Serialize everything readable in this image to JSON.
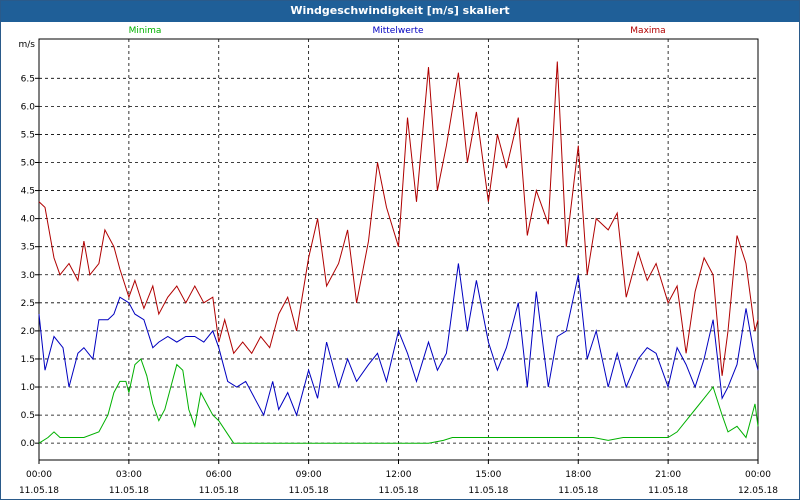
{
  "window": {
    "title": "Windgeschwindigkeit [m/s] skaliert"
  },
  "chart_data": {
    "type": "line",
    "title": "Windgeschwindigkeit [m/s] skaliert",
    "ylabel": "m/s",
    "ylim": [
      -0.3,
      7.2
    ],
    "xlim": [
      0,
      24
    ],
    "grid": true,
    "y_ticks": [
      "0.0",
      "0.5",
      "1.0",
      "1.5",
      "2.0",
      "2.5",
      "3.0",
      "3.5",
      "4.0",
      "4.5",
      "5.0",
      "5.5",
      "6.0",
      "6.5"
    ],
    "x_ticks": [
      {
        "time": "00:00",
        "date": "11.05.18"
      },
      {
        "time": "03:00",
        "date": "11.05.18"
      },
      {
        "time": "06:00",
        "date": "11.05.18"
      },
      {
        "time": "09:00",
        "date": "11.05.18"
      },
      {
        "time": "12:00",
        "date": "11.05.18"
      },
      {
        "time": "15:00",
        "date": "11.05.18"
      },
      {
        "time": "18:00",
        "date": "11.05.18"
      },
      {
        "time": "21:00",
        "date": "11.05.18"
      },
      {
        "time": "00:00",
        "date": "12.05.18"
      }
    ],
    "series": [
      {
        "name": "Minima",
        "color": "#00b000",
        "x": [
          0,
          0.3,
          0.5,
          0.7,
          1,
          1.3,
          1.5,
          2,
          2.3,
          2.5,
          2.7,
          2.9,
          3,
          3.2,
          3.4,
          3.6,
          3.8,
          4,
          4.2,
          4.4,
          4.6,
          4.8,
          5,
          5.2,
          5.4,
          5.6,
          5.8,
          6,
          6.5,
          7,
          8,
          9,
          10,
          11,
          12,
          13,
          13.5,
          13.8,
          14,
          14.2,
          14.5,
          15,
          15.5,
          16,
          16.5,
          17,
          17.5,
          18,
          18.5,
          19,
          19.5,
          20,
          20.5,
          20.8,
          21,
          21.3,
          21.6,
          21.9,
          22.2,
          22.5,
          22.8,
          23,
          23.3,
          23.6,
          23.9,
          24
        ],
        "y": [
          0.0,
          0.1,
          0.2,
          0.1,
          0.1,
          0.1,
          0.1,
          0.2,
          0.5,
          0.9,
          1.1,
          1.1,
          0.9,
          1.4,
          1.5,
          1.2,
          0.7,
          0.4,
          0.6,
          1.0,
          1.4,
          1.3,
          0.6,
          0.3,
          0.9,
          0.7,
          0.5,
          0.4,
          0.0,
          0.0,
          0.0,
          0.0,
          0.0,
          0.0,
          0.0,
          0.0,
          0.05,
          0.1,
          0.1,
          0.1,
          0.1,
          0.1,
          0.1,
          0.1,
          0.1,
          0.1,
          0.1,
          0.1,
          0.1,
          0.05,
          0.1,
          0.1,
          0.1,
          0.1,
          0.1,
          0.2,
          0.4,
          0.6,
          0.8,
          1.0,
          0.5,
          0.2,
          0.3,
          0.1,
          0.7,
          0.3
        ]
      },
      {
        "name": "Mittelwerte",
        "color": "#0000c0",
        "x": [
          0,
          0.2,
          0.5,
          0.8,
          1,
          1.3,
          1.5,
          1.8,
          2,
          2.3,
          2.5,
          2.7,
          3,
          3.2,
          3.5,
          3.8,
          4,
          4.3,
          4.6,
          4.9,
          5.2,
          5.5,
          5.8,
          6,
          6.3,
          6.6,
          6.9,
          7.2,
          7.5,
          7.8,
          8,
          8.3,
          8.6,
          9,
          9.3,
          9.6,
          10,
          10.3,
          10.6,
          11,
          11.3,
          11.6,
          12,
          12.3,
          12.6,
          13,
          13.3,
          13.6,
          14,
          14.3,
          14.6,
          15,
          15.3,
          15.6,
          16,
          16.3,
          16.6,
          17,
          17.3,
          17.6,
          18,
          18.3,
          18.6,
          19,
          19.3,
          19.6,
          20,
          20.3,
          20.6,
          21,
          21.3,
          21.6,
          21.9,
          22.2,
          22.5,
          22.8,
          23,
          23.3,
          23.6,
          23.9,
          24
        ],
        "y": [
          2.3,
          1.3,
          1.9,
          1.7,
          1.0,
          1.6,
          1.7,
          1.5,
          2.2,
          2.2,
          2.3,
          2.6,
          2.5,
          2.3,
          2.2,
          1.7,
          1.8,
          1.9,
          1.8,
          1.9,
          1.9,
          1.8,
          2.0,
          1.7,
          1.1,
          1.0,
          1.1,
          0.8,
          0.5,
          1.1,
          0.6,
          0.9,
          0.5,
          1.3,
          0.8,
          1.8,
          1.0,
          1.5,
          1.1,
          1.4,
          1.6,
          1.1,
          2.0,
          1.6,
          1.1,
          1.8,
          1.3,
          1.6,
          3.2,
          2.0,
          2.9,
          1.8,
          1.3,
          1.7,
          2.5,
          1.0,
          2.7,
          1.0,
          1.9,
          2.0,
          3.0,
          1.5,
          2.0,
          1.0,
          1.6,
          1.0,
          1.5,
          1.7,
          1.6,
          1.0,
          1.7,
          1.4,
          1.0,
          1.5,
          2.2,
          0.8,
          1.0,
          1.4,
          2.4,
          1.5,
          1.3
        ]
      },
      {
        "name": "Maxima",
        "color": "#b00000",
        "x": [
          0,
          0.2,
          0.5,
          0.7,
          1,
          1.3,
          1.5,
          1.7,
          2,
          2.2,
          2.5,
          2.7,
          3,
          3.2,
          3.5,
          3.8,
          4,
          4.3,
          4.6,
          4.9,
          5.2,
          5.5,
          5.8,
          6,
          6.2,
          6.5,
          6.8,
          7.1,
          7.4,
          7.7,
          8,
          8.3,
          8.6,
          9,
          9.3,
          9.6,
          10,
          10.3,
          10.6,
          11,
          11.3,
          11.6,
          12,
          12.3,
          12.6,
          13,
          13.3,
          13.6,
          14,
          14.3,
          14.6,
          15,
          15.3,
          15.6,
          16,
          16.3,
          16.6,
          17,
          17.3,
          17.6,
          18,
          18.3,
          18.6,
          19,
          19.3,
          19.6,
          20,
          20.3,
          20.6,
          21,
          21.3,
          21.6,
          21.9,
          22.2,
          22.5,
          22.8,
          23,
          23.3,
          23.6,
          23.9,
          24
        ],
        "y": [
          4.3,
          4.2,
          3.3,
          3.0,
          3.2,
          2.9,
          3.6,
          3.0,
          3.2,
          3.8,
          3.5,
          3.1,
          2.6,
          2.9,
          2.4,
          2.8,
          2.3,
          2.6,
          2.8,
          2.5,
          2.8,
          2.5,
          2.6,
          1.8,
          2.2,
          1.6,
          1.8,
          1.6,
          1.9,
          1.7,
          2.3,
          2.6,
          2.0,
          3.3,
          4.0,
          2.8,
          3.2,
          3.8,
          2.5,
          3.6,
          5.0,
          4.2,
          3.5,
          5.8,
          4.3,
          6.7,
          4.5,
          5.3,
          6.6,
          5.0,
          5.9,
          4.3,
          5.5,
          4.9,
          5.8,
          3.7,
          4.5,
          3.9,
          6.8,
          3.5,
          5.3,
          3.0,
          4.0,
          3.8,
          4.1,
          2.6,
          3.4,
          2.9,
          3.2,
          2.5,
          2.8,
          1.6,
          2.7,
          3.3,
          3.0,
          1.2,
          2.0,
          3.7,
          3.2,
          2.0,
          2.2
        ]
      }
    ]
  }
}
